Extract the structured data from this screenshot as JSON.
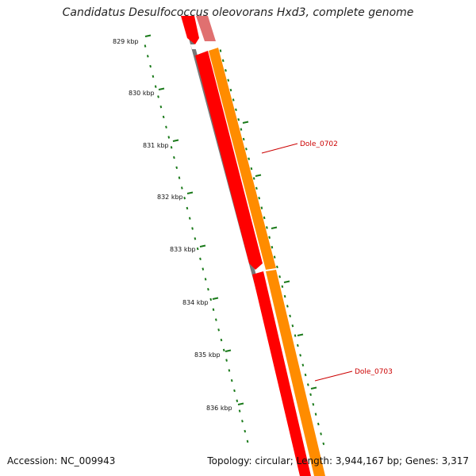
{
  "title": "Candidatus Desulfococcus oleovorans Hxd3, complete genome",
  "footer": {
    "accession": "Accession: NC_009943",
    "summary": "Topology: circular; Length: 3,944,167 bp; Genes: 3,317"
  },
  "scale": {
    "unit_labels": [
      "829 kbp",
      "830 kbp",
      "831 kbp",
      "832 kbp",
      "833 kbp",
      "834 kbp",
      "835 kbp",
      "836 kbp"
    ]
  },
  "genes": [
    {
      "name": "Dole_0702",
      "color": "#ff8c00"
    },
    {
      "name": "Dole_0703",
      "color": "#ff8c00"
    }
  ],
  "colors": {
    "backbone": "#777777",
    "forward_gene": "#ff0000",
    "reverse_gene": "#ff8c00",
    "tick": "#1a7a1a",
    "label": "#cc0000"
  }
}
